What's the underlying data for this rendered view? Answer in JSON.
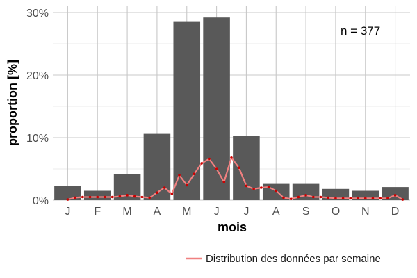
{
  "chart_data": {
    "type": "bar",
    "categories": [
      "J",
      "F",
      "M",
      "A",
      "M",
      "J",
      "J",
      "A",
      "S",
      "O",
      "N",
      "D"
    ],
    "values": [
      2.3,
      1.5,
      4.2,
      10.6,
      28.6,
      29.2,
      10.3,
      2.6,
      2.6,
      1.8,
      1.5,
      2.1
    ],
    "xlabel": "mois",
    "ylabel": "proportion [%]",
    "ylim": [
      0,
      30
    ],
    "yticks": [
      0,
      10,
      20,
      30
    ],
    "ytick_labels": [
      "0%",
      "10%",
      "20%",
      "30%"
    ],
    "grid": true,
    "annotation": "n = 377",
    "bar_color": "#595959",
    "line_color": "#f08080",
    "point_color": "#cc0000",
    "weekly_series": {
      "name": "Distribution des données par semaine",
      "x": [
        1,
        1.25,
        1.5,
        1.75,
        2,
        2.25,
        2.5,
        2.75,
        3,
        3.25,
        3.5,
        3.75,
        4,
        4.25,
        4.5,
        4.75,
        5,
        5.25,
        5.5,
        5.75,
        6,
        6.25,
        6.5,
        6.75,
        7,
        7.25,
        7.5,
        7.75,
        8,
        8.25,
        8.5,
        8.75,
        9,
        9.25,
        9.5,
        9.75,
        10,
        10.25,
        10.5,
        10.75,
        11,
        11.25,
        11.5,
        11.75,
        12,
        12.25
      ],
      "values": [
        0.1,
        0.4,
        0.5,
        0.5,
        0.5,
        0.5,
        0.5,
        0.6,
        0.8,
        0.6,
        0.5,
        0.4,
        1.2,
        2.0,
        1.0,
        4.0,
        2.4,
        4.2,
        5.9,
        6.6,
        5.0,
        2.9,
        6.8,
        5.2,
        2.3,
        1.8,
        2.0,
        2.1,
        1.5,
        0.4,
        0.2,
        0.5,
        0.8,
        0.5,
        0.5,
        0.4,
        0.3,
        0.3,
        0.3,
        0.3,
        0.3,
        0.3,
        0.3,
        0.3,
        0.8,
        0.1
      ]
    },
    "legend_position": "bottom-right"
  }
}
